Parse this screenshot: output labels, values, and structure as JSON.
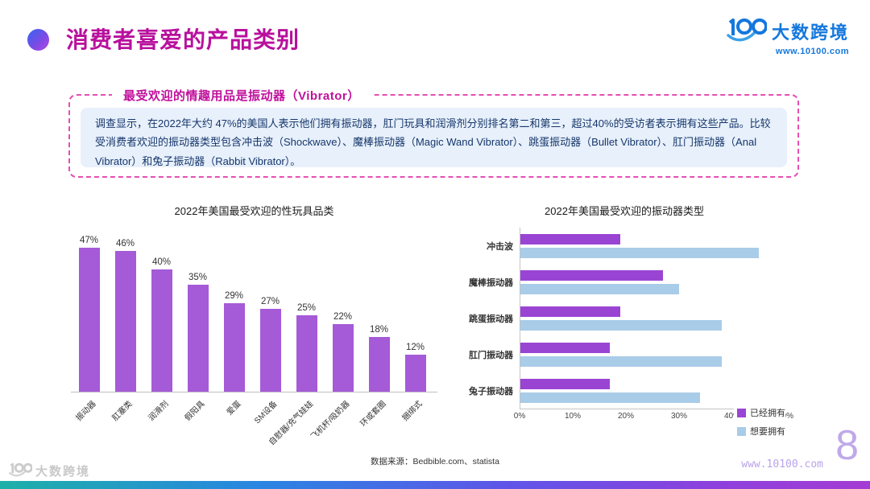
{
  "header": {
    "title": "消费者喜爱的产品类别",
    "logo_text": "大数跨境",
    "logo_url": "www.10100.com"
  },
  "callout": {
    "title": "最受欢迎的情趣用品是振动器（Vibrator）",
    "body": "调查显示，在2022年大约 47%的美国人表示他们拥有振动器，肛门玩具和润滑剂分别排名第二和第三，超过40%的受访者表示拥有这些产品。比较受消费者欢迎的振动器类型包含冲击波（Shockwave）、魔棒振动器（Magic Wand Vibrator）、跳蛋振动器（Bullet Vibrator）、肛门振动器（Anal Vibrator）和兔子振动器（Rabbit Vibrator）。"
  },
  "chart_data": [
    {
      "type": "bar",
      "title": "2022年美国最受欢迎的性玩具品类",
      "categories": [
        "振动器",
        "肛塞类",
        "润滑剂",
        "假阳具",
        "爱蛋",
        "SM设备",
        "自慰器/充气娃娃",
        "飞机杯/吸奶器",
        "环或套圈",
        "捆绑式"
      ],
      "values": [
        47,
        46,
        40,
        35,
        29,
        27,
        25,
        22,
        18,
        12
      ],
      "unit": "%",
      "bar_color": "#a55ad8",
      "ylim": [
        0,
        50
      ],
      "grid": false
    },
    {
      "type": "bar-horizontal",
      "title": "2022年美国最受欢迎的振动器类型",
      "categories": [
        "冲击波",
        "魔棒振动器",
        "跳蛋振动器",
        "肛门振动器",
        "兔子振动器"
      ],
      "series": [
        {
          "name": "已经拥有",
          "color": "#9a44d4",
          "values": [
            19,
            27,
            19,
            17,
            17
          ]
        },
        {
          "name": "想要拥有",
          "color": "#a9cce8",
          "values": [
            45,
            30,
            38,
            38,
            34
          ]
        }
      ],
      "xlim": [
        0,
        50
      ],
      "x_ticks": [
        "0%",
        "10%",
        "20%",
        "30%",
        "40%",
        "50%"
      ],
      "legend_position": "right",
      "grid": false
    }
  ],
  "footer": {
    "source": "数据来源：Bedbible.com、statista",
    "watermark": "大数跨境",
    "url": "www.10100.com",
    "page_number": "8"
  },
  "colors": {
    "title_magenta": "#b8109d",
    "callout_border": "#e54fb3",
    "callout_bg": "#e7f0fb",
    "body_text": "#16366b",
    "logo_blue": "#1477dd",
    "accent_purple_left": "#a55ad8",
    "accent_purple_right": "#9a44d4",
    "accent_lightblue": "#a9cce8"
  }
}
